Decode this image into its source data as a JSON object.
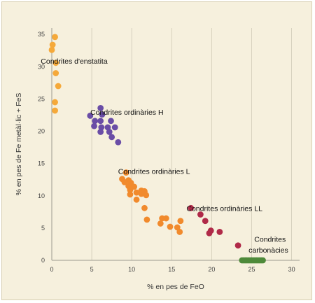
{
  "chart_data": {
    "type": "scatter",
    "xlabel": "% en pes de FeO",
    "ylabel": "% en pes de Fe metàl·lic + FeS",
    "xlim": [
      0,
      31
    ],
    "ylim": [
      0,
      36
    ],
    "xticks": [
      "0",
      "5",
      "10",
      "15",
      "20",
      "25",
      "30"
    ],
    "yticks": [
      "0",
      "5",
      "10",
      "15",
      "20",
      "25",
      "30",
      "35"
    ],
    "grid": "vertical",
    "series": [
      {
        "name": "Condrites d'enstatita",
        "color": "#f5a93a",
        "points": [
          [
            0.4,
            34.6
          ],
          [
            0.1,
            33.4
          ],
          [
            0.0,
            32.6
          ],
          [
            0.5,
            30.6
          ],
          [
            0.5,
            29.0
          ],
          [
            0.8,
            27.0
          ],
          [
            0.4,
            24.5
          ],
          [
            0.4,
            23.2
          ]
        ]
      },
      {
        "name": "Condrites ordinàries H",
        "color": "#6a4da6",
        "points": [
          [
            6.1,
            23.6
          ],
          [
            4.8,
            22.4
          ],
          [
            6.3,
            22.6
          ],
          [
            5.4,
            21.6
          ],
          [
            6.1,
            21.6
          ],
          [
            7.4,
            21.6
          ],
          [
            5.3,
            20.8
          ],
          [
            6.2,
            20.6
          ],
          [
            7.0,
            20.6
          ],
          [
            7.9,
            20.6
          ],
          [
            6.1,
            19.9
          ],
          [
            7.2,
            19.9
          ],
          [
            7.5,
            19.1
          ],
          [
            8.3,
            18.3
          ]
        ]
      },
      {
        "name": "Condrites ordinàries L",
        "color": "#f18a2c",
        "points": [
          [
            9.3,
            13.6
          ],
          [
            8.8,
            12.6
          ],
          [
            9.6,
            12.4
          ],
          [
            9.1,
            12.1
          ],
          [
            9.9,
            12.0
          ],
          [
            9.6,
            11.5
          ],
          [
            10.3,
            11.4
          ],
          [
            9.8,
            10.9
          ],
          [
            11.2,
            10.8
          ],
          [
            11.6,
            10.7
          ],
          [
            10.6,
            10.5
          ],
          [
            11.2,
            10.3
          ],
          [
            9.8,
            10.2
          ],
          [
            11.8,
            10.1
          ],
          [
            10.6,
            9.4
          ],
          [
            11.6,
            8.1
          ],
          [
            11.9,
            6.3
          ],
          [
            13.8,
            6.5
          ],
          [
            14.3,
            6.5
          ],
          [
            13.6,
            5.7
          ],
          [
            16.1,
            6.1
          ],
          [
            14.8,
            5.2
          ],
          [
            15.7,
            5.1
          ],
          [
            16.0,
            4.4
          ]
        ]
      },
      {
        "name": "Condrites ordinàries LL",
        "color": "#b02a48",
        "points": [
          [
            17.4,
            8.1
          ],
          [
            18.6,
            7.1
          ],
          [
            19.2,
            6.1
          ],
          [
            19.9,
            4.6
          ],
          [
            19.7,
            4.2
          ],
          [
            21.0,
            4.4
          ],
          [
            23.3,
            2.3
          ]
        ]
      },
      {
        "name": "Condrites carbonàcies",
        "color": "#4e8a3a",
        "points": [
          [
            23.8,
            0
          ],
          [
            24.0,
            0
          ],
          [
            24.2,
            0
          ],
          [
            24.4,
            0
          ],
          [
            24.6,
            0
          ],
          [
            24.8,
            0
          ],
          [
            25.0,
            0
          ],
          [
            25.2,
            0
          ],
          [
            25.4,
            0
          ],
          [
            25.6,
            0
          ],
          [
            25.8,
            0
          ],
          [
            26.0,
            0
          ],
          [
            26.2,
            0
          ],
          [
            26.4,
            0
          ]
        ]
      }
    ],
    "annotations": [
      {
        "text": "Condrites d'enstatita",
        "x": 2.8,
        "y": 30.9
      },
      {
        "text": "Condrites ordinàries H",
        "x": 9.4,
        "y": 23.0
      },
      {
        "text": "Condrites ordinàries L",
        "x": 12.8,
        "y": 13.8
      },
      {
        "text": "Condrites ordinàries LL",
        "x": 21.6,
        "y": 8.1
      },
      {
        "text": "Condrites",
        "x": 27.3,
        "y": 3.3
      },
      {
        "text": "carbonàcies",
        "x": 27.1,
        "y": 1.6
      }
    ]
  }
}
